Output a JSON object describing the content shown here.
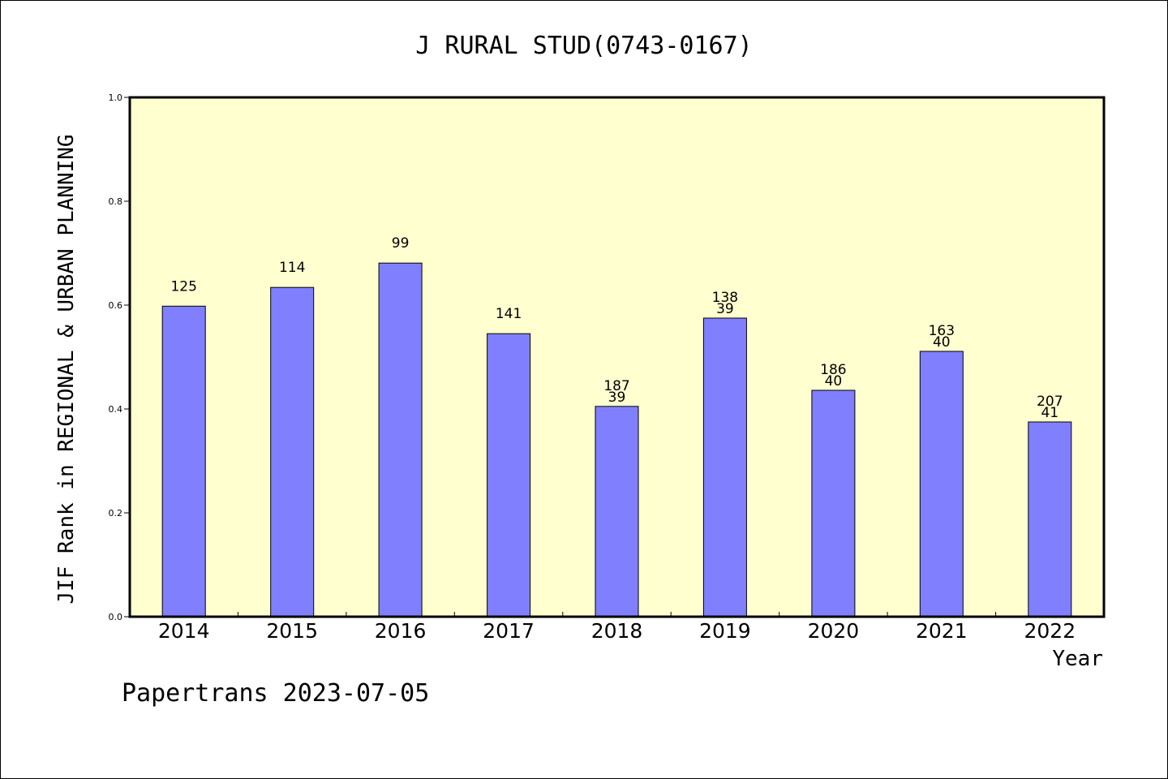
{
  "chart_data": {
    "type": "bar",
    "title": "J RURAL STUD(0743-0167)",
    "xlabel": "Year",
    "ylabel": "JIF Rank in REGIONAL & URBAN PLANNING",
    "ylim": [
      0,
      1.0
    ],
    "yticks": [
      "0.0",
      "0.2",
      "0.4",
      "0.6",
      "0.8",
      "1.0"
    ],
    "categories": [
      "2014",
      "2015",
      "2016",
      "2017",
      "2018",
      "2019",
      "2020",
      "2021",
      "2022"
    ],
    "values": [
      0.598,
      0.634,
      0.681,
      0.545,
      0.405,
      0.575,
      0.436,
      0.511,
      0.375
    ],
    "labels_top": [
      "125",
      "114",
      "99",
      "141",
      "187",
      "138",
      "186",
      "163",
      "207"
    ],
    "labels_bottom": [
      "",
      "",
      "",
      "",
      "39",
      "39",
      "40",
      "40",
      "41"
    ],
    "colors": {
      "plot_bg": "#ffffd0",
      "bar": "#8080ff"
    },
    "grid": false
  },
  "footer": "Papertrans 2023-07-05"
}
